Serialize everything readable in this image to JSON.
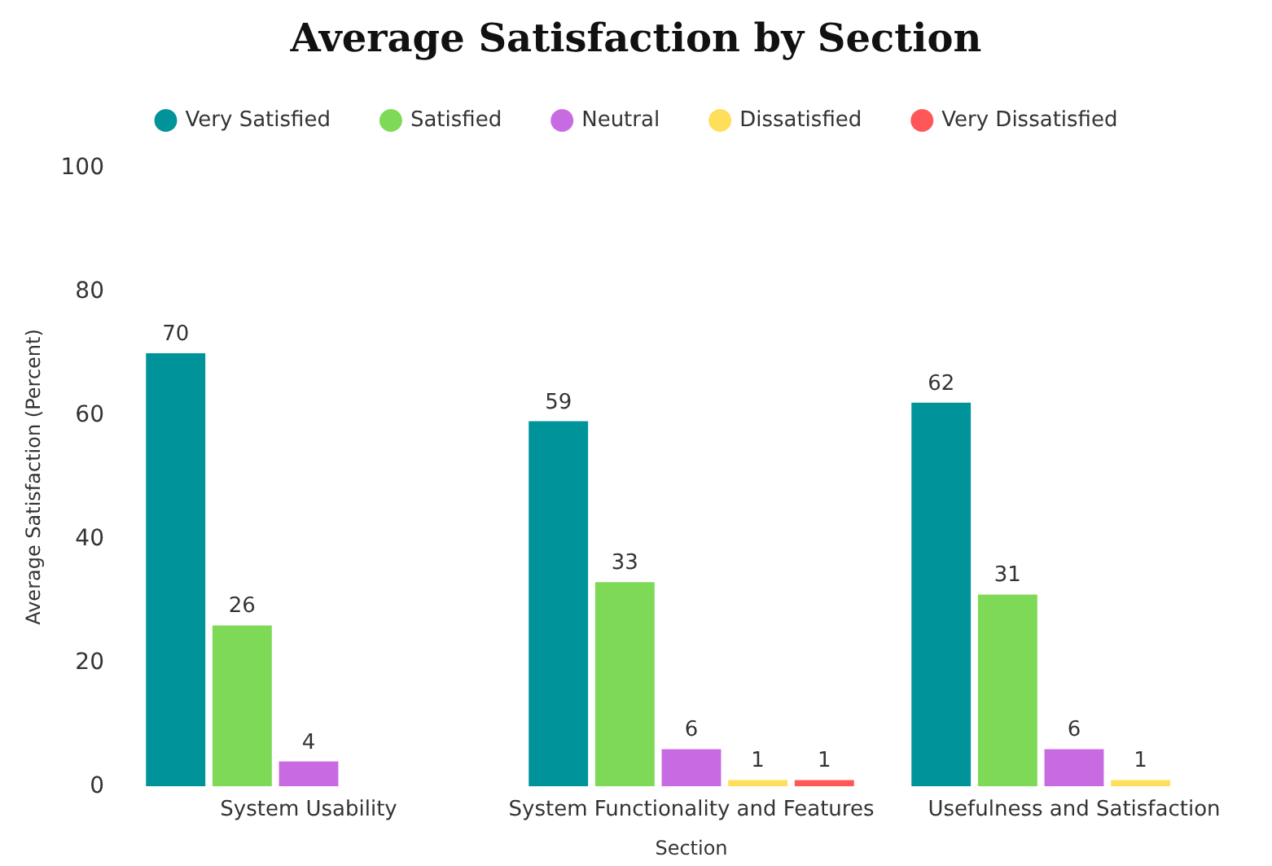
{
  "chart_data": {
    "type": "bar",
    "title": "Average Satisfaction by Section",
    "xlabel": "Section",
    "ylabel": "Average Satisfaction (Percent)",
    "categories": [
      "System Usability",
      "System Functionality and Features",
      "Usefulness and Satisfaction"
    ],
    "series": [
      {
        "name": "Very Satisfied",
        "color": "#00949a",
        "values": [
          70,
          59,
          62
        ]
      },
      {
        "name": "Satisfied",
        "color": "#7ed957",
        "values": [
          26,
          33,
          31
        ]
      },
      {
        "name": "Neutral",
        "color": "#c86be3",
        "values": [
          4,
          6,
          6
        ]
      },
      {
        "name": "Dissatisfied",
        "color": "#ffde59",
        "values": [
          null,
          1,
          1
        ]
      },
      {
        "name": "Very Dissatisfied",
        "color": "#ff5757",
        "values": [
          null,
          1,
          null
        ]
      }
    ],
    "ylim": [
      0,
      100
    ],
    "yticks": [
      0,
      20,
      40,
      60,
      80,
      100
    ],
    "grid": false,
    "legend": "top",
    "data_labels": true
  }
}
